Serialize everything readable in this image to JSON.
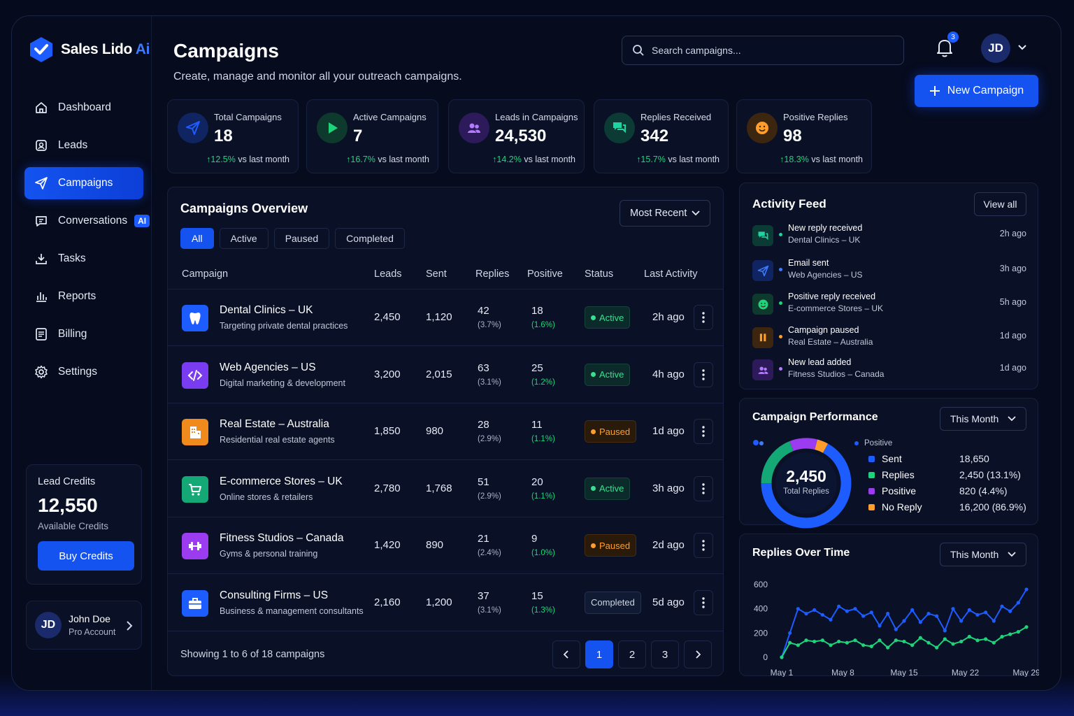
{
  "app": {
    "name": "Sales Lido",
    "name_suffix": "Ai"
  },
  "nav": [
    {
      "label": "Dashboard",
      "icon": "home-icon"
    },
    {
      "label": "Leads",
      "icon": "leads-icon"
    },
    {
      "label": "Campaigns",
      "icon": "send-icon",
      "active": true
    },
    {
      "label": "Conversations",
      "icon": "chat-icon",
      "badge": "AI"
    },
    {
      "label": "Tasks",
      "icon": "download-icon"
    },
    {
      "label": "Reports",
      "icon": "bar-chart-icon"
    },
    {
      "label": "Billing",
      "icon": "billing-icon"
    },
    {
      "label": "Settings",
      "icon": "gear-icon"
    }
  ],
  "credits": {
    "label": "Lead Credits",
    "value": "12,550",
    "sub": "Available Credits",
    "button": "Buy Credits"
  },
  "user": {
    "initials": "JD",
    "name": "John Doe",
    "plan": "Pro Account"
  },
  "header": {
    "title": "Campaigns",
    "subtitle": "Create, manage and monitor all your outreach campaigns.",
    "search_placeholder": "Search campaigns...",
    "notifications": "3",
    "avatar": "JD",
    "new_button": "New Campaign"
  },
  "stats": [
    {
      "label": "Total Campaigns",
      "value": "18",
      "change": "12.5%",
      "change_text": "vs last month",
      "color": "#1d5cff",
      "bg": "#0f2460",
      "icon": "send"
    },
    {
      "label": "Active Campaigns",
      "value": "7",
      "change": "16.7%",
      "change_text": "vs last month",
      "color": "#1ed47a",
      "bg": "#0d3a2c",
      "icon": "play"
    },
    {
      "label": "Leads in Campaigns",
      "value": "24,530",
      "change": "14.2%",
      "change_text": "vs last month",
      "color": "#b57bff",
      "bg": "#2c1a5a",
      "icon": "users"
    },
    {
      "label": "Replies Received",
      "value": "342",
      "change": "15.7%",
      "change_text": "vs last month",
      "color": "#1ed4a0",
      "bg": "#0c3a34",
      "icon": "chat"
    },
    {
      "label": "Positive Replies",
      "value": "98",
      "change": "18.3%",
      "change_text": "vs last month",
      "color": "#ff9e2c",
      "bg": "#3d2610",
      "icon": "smile"
    }
  ],
  "overview": {
    "title": "Campaigns Overview",
    "sort": "Most Recent",
    "tabs": [
      "All",
      "Active",
      "Paused",
      "Completed"
    ],
    "columns": [
      "Campaign",
      "Leads",
      "Sent",
      "Replies",
      "Positive",
      "Status",
      "Last Activity"
    ],
    "rows": [
      {
        "name": "Dental Clinics – UK",
        "desc": "Targeting private dental practices",
        "leads": "2,450",
        "sent": "1,120",
        "replies": "42",
        "replies_pct": "(3.7%)",
        "positive": "18",
        "positive_pct": "(1.6%)",
        "status": "Active",
        "status_key": "active",
        "last": "2h ago",
        "icon": "tooth",
        "color": "#1d5cff"
      },
      {
        "name": "Web Agencies – US",
        "desc": "Digital marketing & development",
        "leads": "3,200",
        "sent": "2,015",
        "replies": "63",
        "replies_pct": "(3.1%)",
        "positive": "25",
        "positive_pct": "(1.2%)",
        "status": "Active",
        "status_key": "active",
        "last": "4h ago",
        "icon": "code",
        "color": "#7a3cf0"
      },
      {
        "name": "Real Estate – Australia",
        "desc": "Residential real estate agents",
        "leads": "1,850",
        "sent": "980",
        "replies": "28",
        "replies_pct": "(2.9%)",
        "positive": "11",
        "positive_pct": "(1.1%)",
        "status": "Paused",
        "status_key": "paused",
        "last": "1d ago",
        "icon": "building",
        "color": "#f08a1c"
      },
      {
        "name": "E-commerce Stores – UK",
        "desc": "Online stores & retailers",
        "leads": "2,780",
        "sent": "1,768",
        "replies": "51",
        "replies_pct": "(2.9%)",
        "positive": "20",
        "positive_pct": "(1.1%)",
        "status": "Active",
        "status_key": "active",
        "last": "3h ago",
        "icon": "cart",
        "color": "#14a877"
      },
      {
        "name": "Fitness Studios – Canada",
        "desc": "Gyms & personal training",
        "leads": "1,420",
        "sent": "890",
        "replies": "21",
        "replies_pct": "(2.4%)",
        "positive": "9",
        "positive_pct": "(1.0%)",
        "status": "Paused",
        "status_key": "paused",
        "last": "2d ago",
        "icon": "dumbbell",
        "color": "#9b3cf0"
      },
      {
        "name": "Consulting Firms – US",
        "desc": "Business & management consultants",
        "leads": "2,160",
        "sent": "1,200",
        "replies": "37",
        "replies_pct": "(3.1%)",
        "positive": "15",
        "positive_pct": "(1.3%)",
        "status": "Completed",
        "status_key": "completed",
        "last": "5d ago",
        "icon": "briefcase",
        "color": "#1d5cff"
      }
    ],
    "footer": "Showing 1 to 6 of 18 campaigns",
    "pages": [
      "1",
      "2",
      "3"
    ]
  },
  "feed": {
    "title": "Activity Feed",
    "view_all": "View all",
    "items": [
      {
        "title": "New reply received",
        "sub": "Dental Clinics – UK",
        "time": "2h ago",
        "icon": "chat",
        "color": "#1ed4a0",
        "bg": "#0c3a34"
      },
      {
        "title": "Email sent",
        "sub": "Web Agencies – US",
        "time": "3h ago",
        "icon": "send",
        "color": "#3d7bff",
        "bg": "#0f2460"
      },
      {
        "title": "Positive reply received",
        "sub": "E-commerce Stores – UK",
        "time": "5h ago",
        "icon": "smile",
        "color": "#1ed47a",
        "bg": "#0d3a2c"
      },
      {
        "title": "Campaign paused",
        "sub": "Real Estate – Australia",
        "time": "1d ago",
        "icon": "pause",
        "color": "#ff9e2c",
        "bg": "#3d2610"
      },
      {
        "title": "New lead added",
        "sub": "Fitness Studios – Canada",
        "time": "1d ago",
        "icon": "users",
        "color": "#b57bff",
        "bg": "#2c1a5a"
      }
    ]
  },
  "performance": {
    "title": "Campaign Performance",
    "period": "This Month",
    "center_value": "2,450",
    "center_label": "Total Replies",
    "legend_header": "Positive",
    "legend": [
      {
        "name": "Sent",
        "value": "18,650",
        "color": "#1d5cff"
      },
      {
        "name": "Replies",
        "value": "2,450 (13.1%)",
        "color": "#1ed47a"
      },
      {
        "name": "Positive",
        "value": "820 (4.4%)",
        "color": "#9b3cf0"
      },
      {
        "name": "No Reply",
        "value": "16,200 (86.9%)",
        "color": "#ff9e2c"
      }
    ]
  },
  "replies_over_time": {
    "title": "Replies Over Time",
    "period": "This Month"
  },
  "chart_data": {
    "type": "line",
    "x": [
      1,
      2,
      3,
      4,
      5,
      6,
      7,
      8,
      9,
      10,
      11,
      12,
      13,
      14,
      15,
      16,
      17,
      18,
      19,
      20,
      21,
      22,
      23,
      24,
      25,
      26,
      27,
      28,
      29,
      30,
      31
    ],
    "xticks": [
      "May 1",
      "May 8",
      "May 15",
      "May 22",
      "May 29"
    ],
    "yticks": [
      0,
      200,
      400,
      600
    ],
    "ylim": [
      0,
      600
    ],
    "series": [
      {
        "values": [
          0,
          200,
          400,
          360,
          390,
          350,
          310,
          420,
          380,
          400,
          340,
          370,
          260,
          360,
          230,
          300,
          390,
          290,
          360,
          340,
          220,
          400,
          300,
          390,
          350,
          370,
          300,
          420,
          380,
          450,
          560
        ],
        "color": "#1d5cff"
      },
      {
        "values": [
          0,
          120,
          100,
          140,
          130,
          140,
          100,
          130,
          120,
          140,
          100,
          90,
          140,
          80,
          140,
          130,
          100,
          160,
          120,
          80,
          150,
          110,
          130,
          170,
          140,
          150,
          120,
          170,
          190,
          210,
          250
        ],
        "color": "#1ed47a"
      }
    ]
  }
}
